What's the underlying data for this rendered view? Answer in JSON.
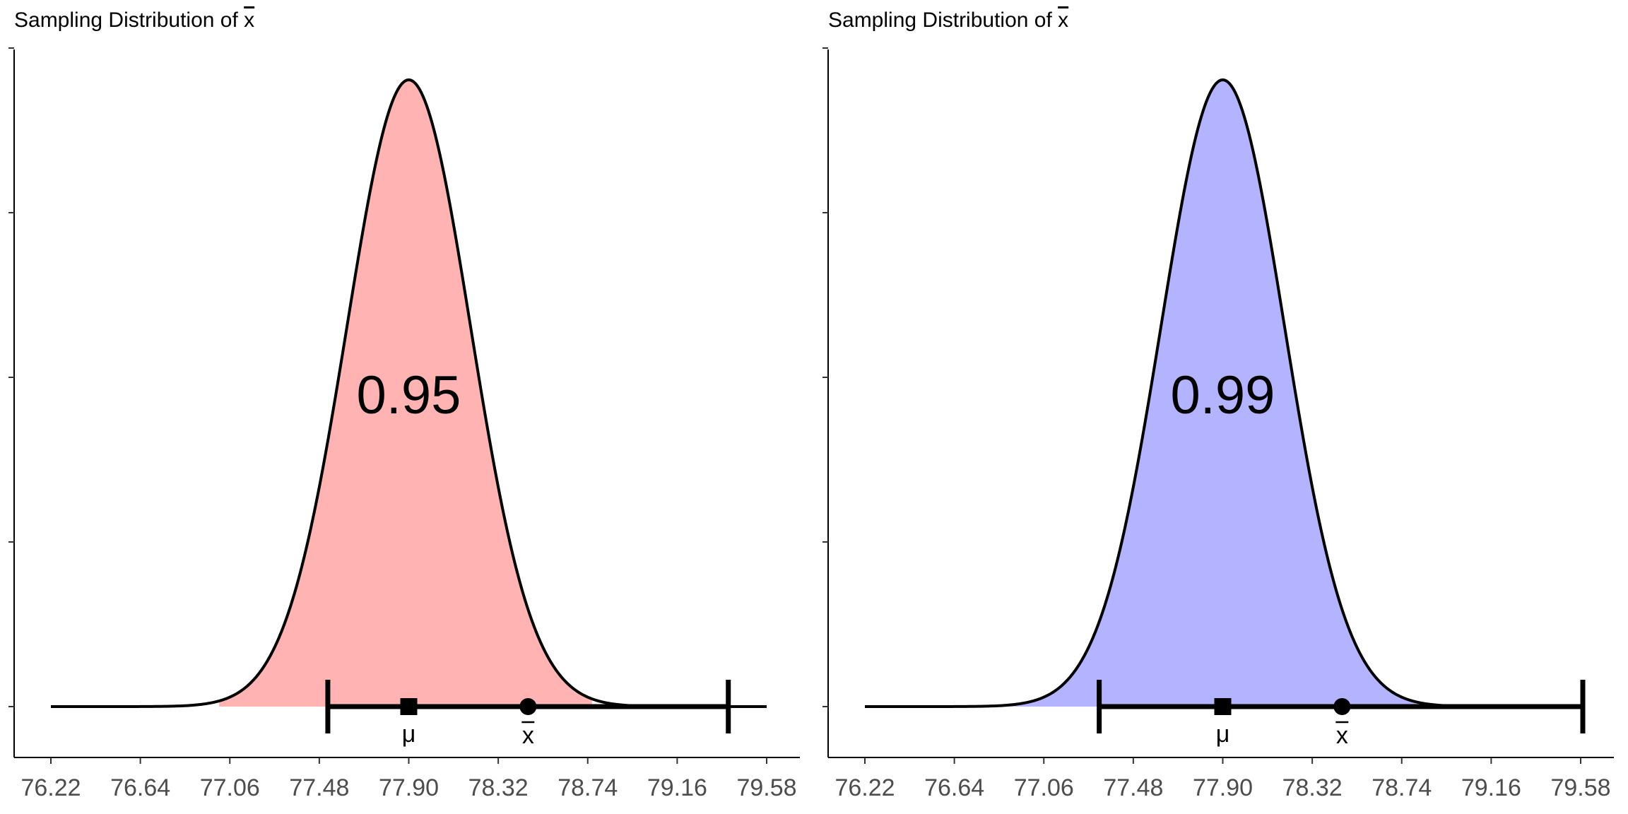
{
  "chart_data": [
    {
      "type": "area",
      "title_prefix": "Sampling Distribution of ",
      "title_symbol": "x",
      "distribution": {
        "mean": 77.9,
        "sd": 0.29
      },
      "xlim": [
        76.22,
        79.58
      ],
      "curve_range": [
        76.22,
        79.58
      ],
      "x_ticks": [
        "76.22",
        "76.64",
        "77.06",
        "77.48",
        "77.90",
        "78.32",
        "78.74",
        "79.16",
        "79.58"
      ],
      "y_ticks_count": 5,
      "shaded_region": [
        77.01,
        78.76
      ],
      "shade_color": "#FFB3B3",
      "area_label": "0.95",
      "interval": [
        77.52,
        79.4
      ],
      "mu": 77.9,
      "mu_label": "μ",
      "xbar": 78.46,
      "xbar_label": "x"
    },
    {
      "type": "area",
      "title_prefix": "Sampling Distribution of ",
      "title_symbol": "x",
      "distribution": {
        "mean": 77.9,
        "sd": 0.29
      },
      "xlim": [
        76.22,
        79.58
      ],
      "curve_range": [
        76.22,
        79.58
      ],
      "x_ticks": [
        "76.22",
        "76.64",
        "77.06",
        "77.48",
        "77.90",
        "78.32",
        "78.74",
        "79.16",
        "79.58"
      ],
      "y_ticks_count": 5,
      "shaded_region": [
        76.75,
        79.05
      ],
      "shade_color": "#B3B3FF",
      "area_label": "0.99",
      "interval": [
        77.32,
        79.59
      ],
      "mu": 77.9,
      "mu_label": "μ",
      "xbar": 78.46,
      "xbar_label": "x"
    }
  ]
}
